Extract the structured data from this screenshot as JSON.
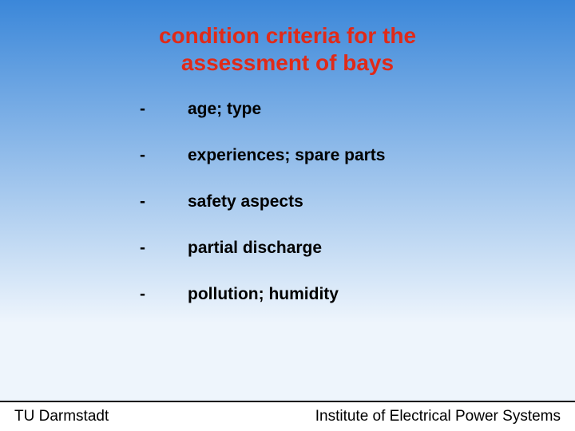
{
  "slide": {
    "title_line1": "condition criteria for the",
    "title_line2": "assessment of bays",
    "title_color": "#e02a18",
    "title_fontsize": 28,
    "background_gradient_top": "#3b87d9",
    "background_gradient_bottom": "#eef5fc",
    "bullets": [
      {
        "dash": "-",
        "text": "age; type"
      },
      {
        "dash": "-",
        "text": "experiences; spare parts"
      },
      {
        "dash": "-",
        "text": "safety aspects"
      },
      {
        "dash": "-",
        "text": "partial discharge"
      },
      {
        "dash": "-",
        "text": "pollution; humidity"
      }
    ],
    "bullet_fontsize": 21,
    "bullet_color": "#000000"
  },
  "footer": {
    "left": "TU Darmstadt",
    "right": "Institute of  Electrical Power Systems",
    "fontsize": 19,
    "color": "#000000"
  }
}
